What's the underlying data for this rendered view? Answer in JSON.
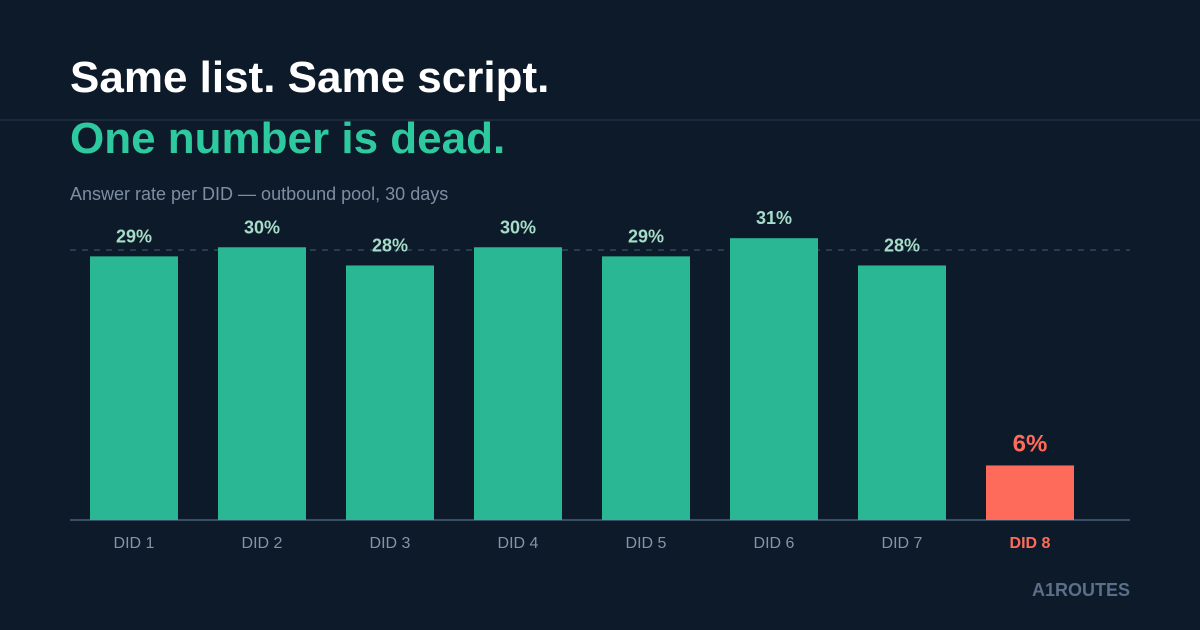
{
  "chart_data": {
    "type": "bar",
    "title": "Same list. Same script.",
    "title_highlight": "One number is dead.",
    "subtitle": "Answer rate per DID — outbound pool, 30 days",
    "brand": "A1ROUTES",
    "categories": [
      "DID 1",
      "DID 2",
      "DID 3",
      "DID 4",
      "DID 5",
      "DID 6",
      "DID 7",
      "DID 8"
    ],
    "values": [
      29,
      30,
      28,
      30,
      29,
      31,
      28,
      6
    ],
    "value_labels": [
      "29%",
      "30%",
      "28%",
      "30%",
      "29%",
      "31%",
      "28%",
      "6%"
    ],
    "colors": [
      "#2ab894",
      "#2ab894",
      "#2ab894",
      "#2ab894",
      "#2ab894",
      "#2ab894",
      "#2ab894",
      "#ff6b5a"
    ],
    "ylim": [
      0,
      33
    ]
  }
}
